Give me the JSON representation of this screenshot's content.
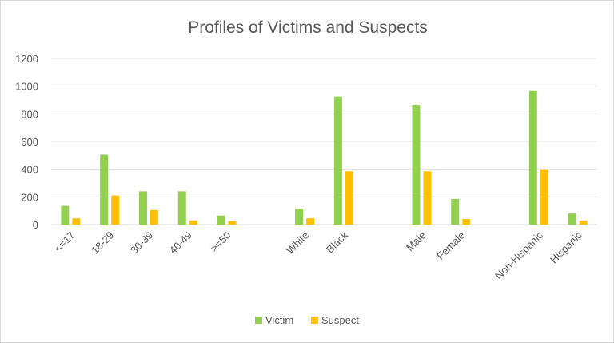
{
  "chart_data": {
    "type": "bar",
    "title": "Profiles of Victims and Suspects",
    "xlabel": "",
    "ylabel": "",
    "ylim": [
      0,
      1200
    ],
    "yticks": [
      0,
      200,
      400,
      600,
      800,
      1000,
      1200
    ],
    "grid": true,
    "legend_position": "bottom",
    "categories": [
      "<=17",
      "18-29",
      "30-39",
      "40-49",
      ">=50",
      "White",
      "Black",
      "Male",
      "Female",
      "Non-Hispanic",
      "Hispanic"
    ],
    "series": [
      {
        "name": "Victim",
        "color": "#92d050",
        "values": [
          135,
          505,
          240,
          240,
          65,
          115,
          925,
          865,
          185,
          965,
          80
        ]
      },
      {
        "name": "Suspect",
        "color": "#ffc000",
        "values": [
          45,
          210,
          105,
          30,
          25,
          45,
          385,
          385,
          40,
          400,
          30
        ]
      }
    ]
  }
}
